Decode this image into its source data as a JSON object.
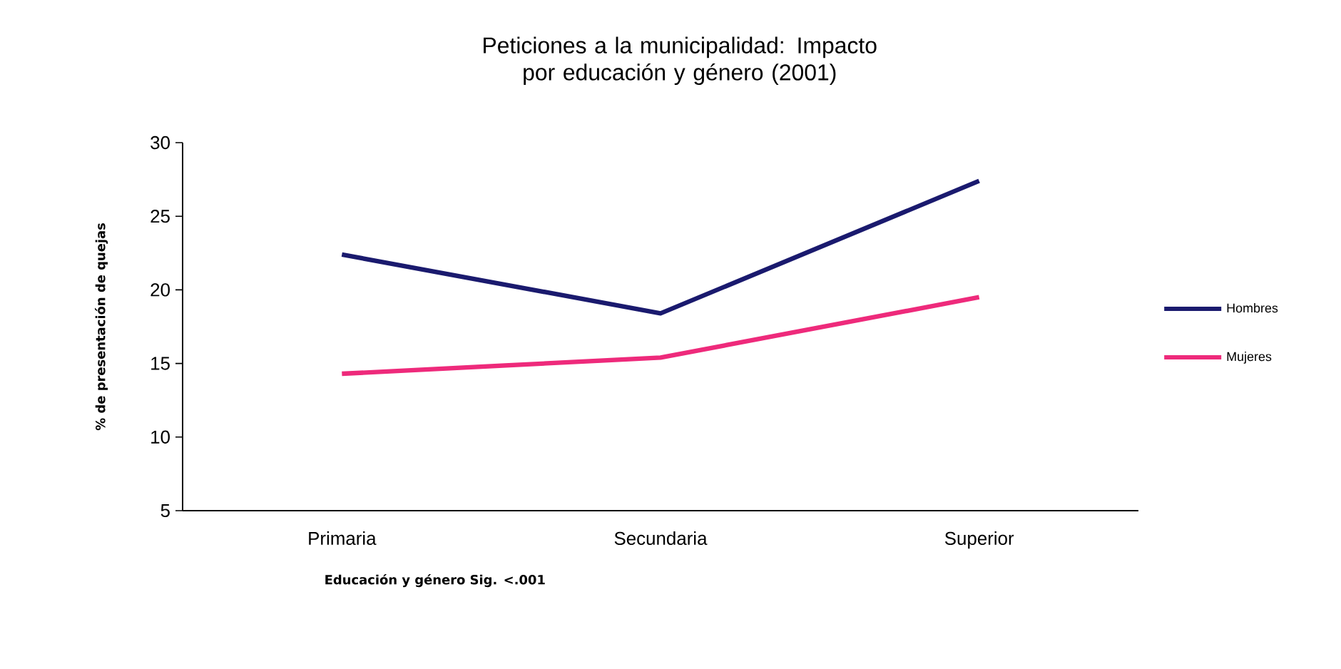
{
  "chart_data": {
    "type": "line",
    "title": "Peticiones a la municipalidad: Impacto por educación y género (2001)",
    "xlabel": "Educación y género Sig. <.001",
    "ylabel": "% de presentación de quejas",
    "categories": [
      "Primaria",
      "Secundaria",
      "Superior"
    ],
    "series": [
      {
        "name": "Hombres",
        "color": "#1a1a6e",
        "values": [
          22.4,
          18.4,
          27.4
        ]
      },
      {
        "name": "Mujeres",
        "color": "#ee2a7b",
        "values": [
          14.3,
          15.4,
          19.5
        ]
      }
    ],
    "ylim": [
      5,
      30
    ],
    "yticks": [
      5,
      10,
      15,
      20,
      25,
      30
    ],
    "grid": false,
    "legend": "right",
    "marker": "none",
    "line_style": "solid"
  }
}
